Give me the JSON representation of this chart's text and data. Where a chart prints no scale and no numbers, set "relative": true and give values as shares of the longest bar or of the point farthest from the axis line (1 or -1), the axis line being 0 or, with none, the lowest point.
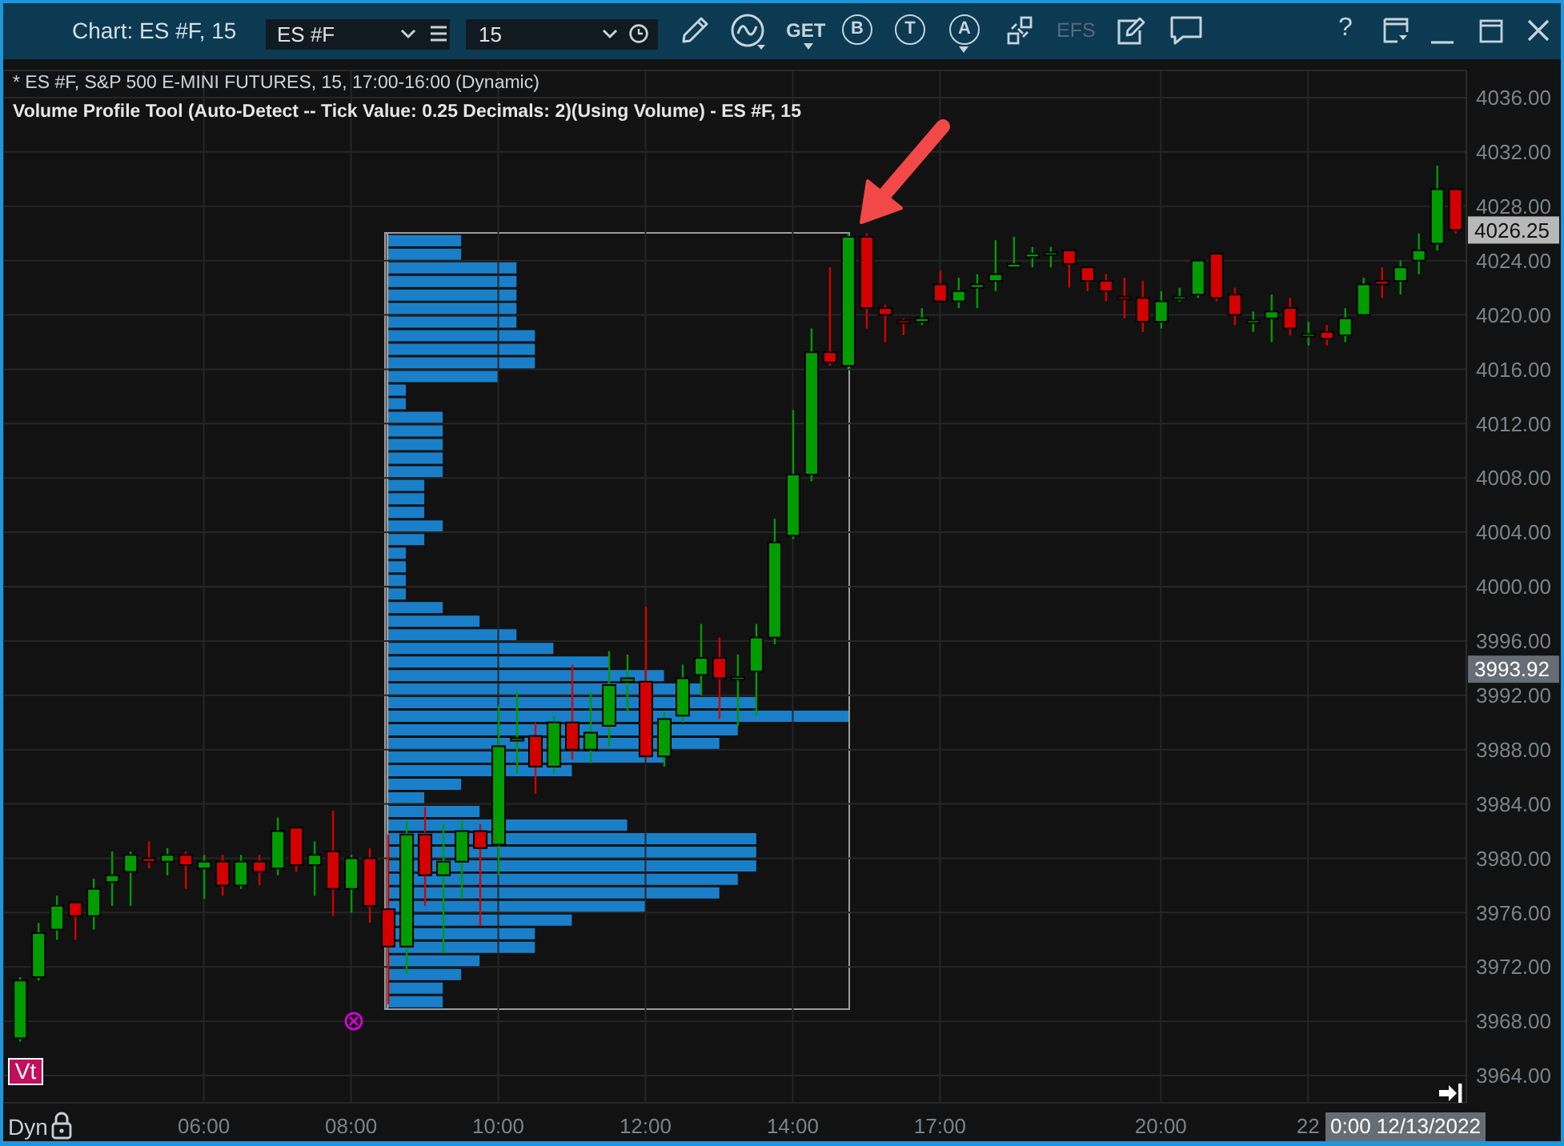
{
  "chart_data": [
    {
      "type": "candlestick",
      "title": "* ES #F, S&P 500 E-MINI FUTURES, 15, 17:00-16:00 (Dynamic)",
      "subtitle": "Volume Profile Tool (Auto-Detect -- Tick Value: 0.25 Decimals: 2)(Using Volume) - ES #F, 15",
      "categories": [
        null,
        null,
        null,
        null,
        null,
        null,
        null,
        null,
        null,
        null,
        "06:00",
        null,
        null,
        null,
        null,
        null,
        null,
        null,
        "08:00",
        null,
        null,
        null,
        null,
        null,
        null,
        null,
        "10:00",
        null,
        null,
        null,
        null,
        null,
        null,
        null,
        "12:00",
        null,
        null,
        null,
        null,
        null,
        null,
        null,
        "14:00",
        null,
        null,
        null,
        null,
        null,
        null,
        null,
        "17:00",
        null,
        null,
        null,
        null,
        null,
        null,
        null,
        null,
        null,
        null,
        null,
        "20:00",
        null,
        null,
        null,
        null,
        null,
        null,
        null,
        "22",
        null,
        null,
        null,
        null,
        null,
        null,
        null,
        null
      ],
      "ohlc": [
        [
          3966.75,
          3971.25,
          3966.5,
          3971.0
        ],
        [
          3971.25,
          3975.25,
          3971.0,
          3974.5
        ],
        [
          3974.75,
          3977.25,
          3974.0,
          3976.5
        ],
        [
          3976.75,
          3976.75,
          3974.0,
          3975.75
        ],
        [
          3975.75,
          3978.5,
          3974.75,
          3977.75
        ],
        [
          3978.25,
          3980.5,
          3976.5,
          3978.75
        ],
        [
          3979.0,
          3980.5,
          3976.5,
          3980.25
        ],
        [
          3980.0,
          3981.25,
          3979.25,
          3979.75
        ],
        [
          3979.75,
          3980.75,
          3978.75,
          3980.25
        ],
        [
          3980.25,
          3980.5,
          3977.75,
          3979.5
        ],
        [
          3979.25,
          3980.25,
          3977.0,
          3979.75
        ],
        [
          3979.75,
          3980.25,
          3977.25,
          3978.0
        ],
        [
          3978.0,
          3980.25,
          3977.75,
          3979.75
        ],
        [
          3979.75,
          3980.25,
          3978.0,
          3979.0
        ],
        [
          3979.25,
          3983.0,
          3978.75,
          3982.0
        ],
        [
          3982.25,
          3982.25,
          3979.0,
          3979.5
        ],
        [
          3979.5,
          3981.25,
          3977.25,
          3980.25
        ],
        [
          3980.5,
          3983.5,
          3975.75,
          3977.75
        ],
        [
          3977.75,
          3980.25,
          3976.0,
          3980.0
        ],
        [
          3980.0,
          3980.75,
          3975.25,
          3976.5
        ],
        [
          3976.25,
          3981.75,
          3969.25,
          3973.5
        ],
        [
          3973.5,
          3982.75,
          3971.5,
          3981.75
        ],
        [
          3981.75,
          3983.75,
          3976.5,
          3978.75
        ],
        [
          3978.75,
          3982.5,
          3973.0,
          3979.75
        ],
        [
          3979.75,
          3982.75,
          3977.0,
          3982.0
        ],
        [
          3982.0,
          3982.5,
          3975.0,
          3980.75
        ],
        [
          3981.0,
          3991.25,
          3978.75,
          3988.25
        ],
        [
          3988.75,
          3992.25,
          3986.25,
          3988.75
        ],
        [
          3989.0,
          3990.0,
          3984.75,
          3986.75
        ],
        [
          3986.75,
          3990.5,
          3986.25,
          3990.0
        ],
        [
          3990.0,
          3994.25,
          3987.25,
          3988.0
        ],
        [
          3988.0,
          3992.25,
          3987.0,
          3989.25
        ],
        [
          3989.75,
          3995.25,
          3988.25,
          3992.75
        ],
        [
          3993.0,
          3995.0,
          3990.75,
          3993.25
        ],
        [
          3993.0,
          3998.5,
          3987.25,
          3987.5
        ],
        [
          3987.5,
          3990.75,
          3986.75,
          3990.25
        ],
        [
          3990.5,
          3994.25,
          3990.0,
          3993.25
        ],
        [
          3993.5,
          3997.25,
          3992.0,
          3994.75
        ],
        [
          3994.75,
          3996.25,
          3990.25,
          3993.25
        ],
        [
          3993.25,
          3995.0,
          3989.75,
          3993.25
        ],
        [
          3993.75,
          3997.25,
          3990.5,
          3996.25
        ],
        [
          3996.25,
          4005.0,
          3995.75,
          4003.25
        ],
        [
          4003.75,
          4013.0,
          4003.5,
          4008.25
        ],
        [
          4008.25,
          4019.0,
          4007.75,
          4017.25
        ],
        [
          4017.25,
          4023.5,
          4016.25,
          4016.5
        ],
        [
          4016.25,
          4026.0,
          4016.0,
          4025.75
        ],
        [
          4025.75,
          4026.0,
          4019.0,
          4020.5
        ],
        [
          4020.5,
          4020.75,
          4018.0,
          4020.0
        ],
        [
          4019.5,
          4019.75,
          4018.5,
          4019.5
        ],
        [
          4019.5,
          4020.5,
          4019.25,
          4019.75
        ],
        [
          4022.25,
          4023.25,
          4021.0,
          4021.0
        ],
        [
          4021.0,
          4022.75,
          4020.5,
          4021.75
        ],
        [
          4022.0,
          4023.0,
          4020.5,
          4022.25
        ],
        [
          4022.5,
          4025.5,
          4021.75,
          4023.0
        ],
        [
          4023.5,
          4025.75,
          4023.5,
          4023.75
        ],
        [
          4024.25,
          4025.0,
          4023.5,
          4024.5
        ],
        [
          4024.5,
          4025.0,
          4023.5,
          4024.5
        ],
        [
          4024.75,
          4024.75,
          4022.0,
          4023.75
        ],
        [
          4023.5,
          4023.5,
          4021.75,
          4022.5
        ],
        [
          4022.5,
          4023.0,
          4021.0,
          4021.75
        ],
        [
          4021.25,
          4022.75,
          4019.75,
          4021.25
        ],
        [
          4021.25,
          4022.5,
          4018.75,
          4019.5
        ],
        [
          4019.5,
          4021.75,
          4019.0,
          4021.0
        ],
        [
          4021.25,
          4022.0,
          4021.0,
          4021.25
        ],
        [
          4021.5,
          4024.0,
          4021.25,
          4024.0
        ],
        [
          4024.5,
          4024.5,
          4021.0,
          4021.25
        ],
        [
          4021.5,
          4022.0,
          4019.25,
          4020.0
        ],
        [
          4019.5,
          4020.25,
          4018.75,
          4019.5
        ],
        [
          4019.75,
          4021.5,
          4018.0,
          4020.25
        ],
        [
          4020.5,
          4021.25,
          4018.5,
          4019.0
        ],
        [
          4018.5,
          4019.5,
          4017.75,
          4018.5
        ],
        [
          4018.75,
          4019.25,
          4017.75,
          4018.25
        ],
        [
          4018.5,
          4020.5,
          4018.0,
          4019.75
        ],
        [
          4020.0,
          4022.75,
          4020.0,
          4022.25
        ],
        [
          4022.5,
          4023.5,
          4021.25,
          4022.25
        ],
        [
          4022.5,
          4024.0,
          4021.5,
          4023.5
        ],
        [
          4024.0,
          4026.0,
          4023.0,
          4024.75
        ],
        [
          4025.25,
          4031.0,
          4024.75,
          4029.25
        ],
        [
          4029.25,
          4029.25,
          4026.0,
          4026.25
        ]
      ],
      "colors": [
        "#009c00",
        "#009c00",
        "#009c00",
        "#d40000",
        "#009c00",
        "#009c00",
        "#009c00",
        "#d40000",
        "#009c00",
        "#d40000",
        "#009c00",
        "#d40000",
        "#009c00",
        "#d40000",
        "#009c00",
        "#d40000",
        "#009c00",
        "#d40000",
        "#009c00",
        "#d40000",
        "#d40000",
        "#009c00",
        "#d40000",
        "#009c00",
        "#009c00",
        "#d40000",
        "#009c00",
        "#009c00",
        "#d40000",
        "#009c00",
        "#d40000",
        "#009c00",
        "#009c00",
        "#009c00",
        "#d40000",
        "#009c00",
        "#009c00",
        "#009c00",
        "#d40000",
        "#009c00",
        "#009c00",
        "#009c00",
        "#009c00",
        "#009c00",
        "#d40000",
        "#009c00",
        "#d40000",
        "#d40000",
        "#d40000",
        "#009c00",
        "#d40000",
        "#009c00",
        "#009c00",
        "#009c00",
        "#009c00",
        "#009c00",
        "#009c00",
        "#d40000",
        "#d40000",
        "#d40000",
        "#d40000",
        "#d40000",
        "#009c00",
        "#009c00",
        "#009c00",
        "#d40000",
        "#d40000",
        "#009c00",
        "#009c00",
        "#d40000",
        "#009c00",
        "#d40000",
        "#009c00",
        "#009c00",
        "#d40000",
        "#009c00",
        "#009c00",
        "#009c00",
        "#d40000"
      ],
      "ylim": [
        3962,
        4038
      ],
      "yticks": [
        {
          "value": 3964,
          "label": "3964.00"
        },
        {
          "value": 3968,
          "label": "3968.00"
        },
        {
          "value": 3972,
          "label": "3972.00"
        },
        {
          "value": 3976,
          "label": "3976.00"
        },
        {
          "value": 3980,
          "label": "3980.00"
        },
        {
          "value": 3984,
          "label": "3984.00"
        },
        {
          "value": 3988,
          "label": "3988.00"
        },
        {
          "value": 3992,
          "label": "3992.00"
        },
        {
          "value": 3996,
          "label": "3996.00"
        },
        {
          "value": 4000,
          "label": "4000.00"
        },
        {
          "value": 4004,
          "label": "4004.00"
        },
        {
          "value": 4008,
          "label": "4008.00"
        },
        {
          "value": 4012,
          "label": "4012.00"
        },
        {
          "value": 4016,
          "label": "4016.00"
        },
        {
          "value": 4020,
          "label": "4020.00"
        },
        {
          "value": 4024,
          "label": "4024.00"
        },
        {
          "value": 4028,
          "label": "4028.00"
        },
        {
          "value": 4032,
          "label": "4032.00"
        },
        {
          "value": 4036,
          "label": "4036.00"
        }
      ],
      "grid": true,
      "annotations": [
        "Chart: ES #F, 15",
        "ES #F",
        "15",
        "GET",
        "B",
        "T",
        "A",
        "EFS",
        "?",
        "Vt",
        "Dyn",
        "4026.25",
        "3993.92",
        "0:00 12/13/2022"
      ]
    },
    {
      "type": "bar",
      "orientation": "horizontal",
      "relative": true,
      "categories": [
        null,
        null,
        null,
        null,
        null,
        null,
        null,
        null,
        null,
        null,
        null,
        null,
        null,
        null,
        null,
        null,
        null,
        null,
        null,
        null,
        null,
        null,
        null,
        null,
        null,
        null,
        null,
        null,
        null,
        null,
        null,
        null,
        null,
        null,
        null,
        null,
        null,
        null,
        null,
        null,
        null,
        null,
        null,
        null,
        null,
        null,
        null,
        null,
        null,
        null,
        null,
        null,
        null,
        null,
        null,
        null,
        null
      ],
      "values": [
        0.16,
        0.16,
        0.28,
        0.28,
        0.28,
        0.28,
        0.28,
        0.32,
        0.32,
        0.32,
        0.24,
        0.04,
        0.04,
        0.12,
        0.12,
        0.12,
        0.12,
        0.12,
        0.08,
        0.08,
        0.08,
        0.12,
        0.08,
        0.04,
        0.04,
        0.04,
        0.04,
        0.12,
        0.2,
        0.28,
        0.36,
        0.48,
        0.6,
        0.68,
        0.8,
        1,
        0.76,
        0.72,
        0.6,
        0.4,
        0.16,
        0.08,
        0.2,
        0.52,
        0.8,
        0.8,
        0.8,
        0.76,
        0.72,
        0.56,
        0.4,
        0.32,
        0.32,
        0.2,
        0.16,
        0.12,
        0.12
      ],
      "color": "#1a7fc9"
    }
  ]
}
